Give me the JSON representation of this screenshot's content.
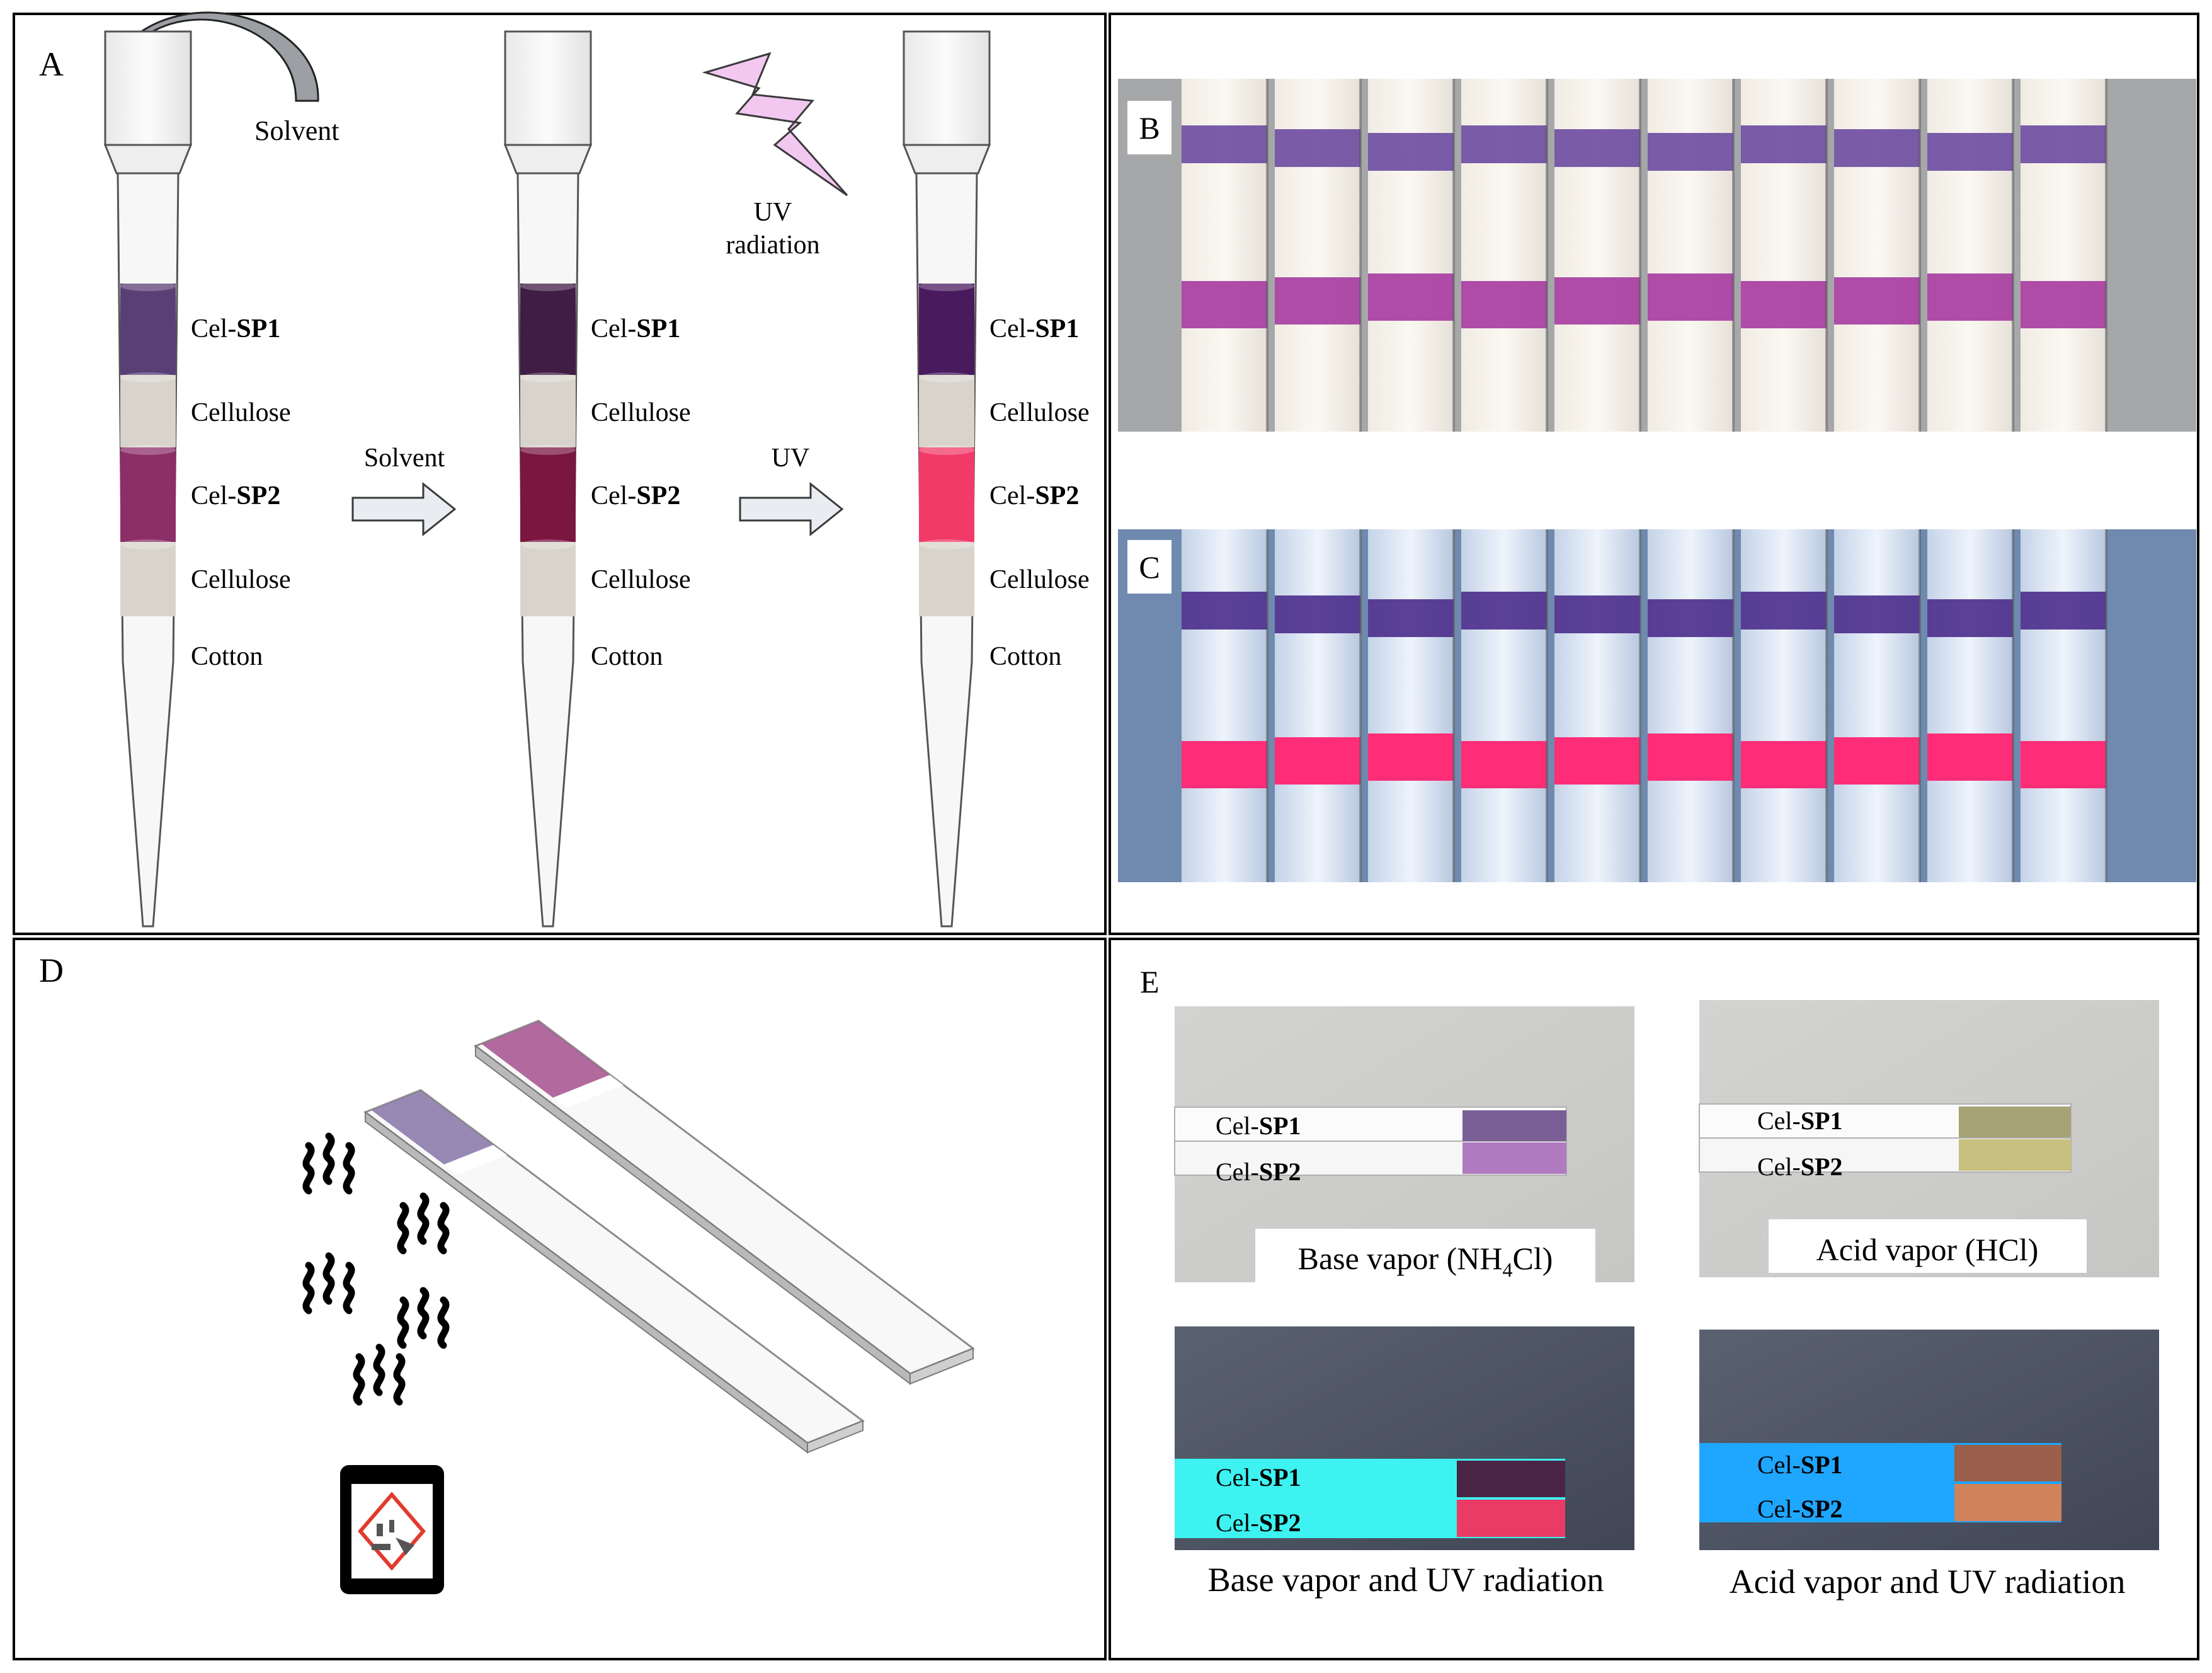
{
  "panel_labels": {
    "a": "A",
    "b": "B",
    "c": "C",
    "d": "D",
    "e": "E"
  },
  "panel_a": {
    "solvent_top": "Solvent",
    "uv_line1": "UV",
    "uv_line2": "radiation",
    "arrow1_label": "Solvent",
    "arrow2_label": "UV",
    "layer_prefix": "Cel-",
    "sp1": "SP1",
    "sp2": "SP2",
    "cellulose": "Cellulose",
    "cotton": "Cotton",
    "tips": [
      {
        "sp1_color": "#5a3f76",
        "sp2_color": "#8c2e68"
      },
      {
        "sp1_color": "#3f1d45",
        "sp2_color": "#7a1640"
      },
      {
        "sp1_color": "#4a1a5e",
        "sp2_color": "#f23a69"
      }
    ]
  },
  "panel_b": {
    "strip_count": 10,
    "background": "#a6a7a9",
    "band1_color": "#6b4aa0",
    "band2_color": "#a63aa1"
  },
  "panel_c": {
    "strip_count": 10,
    "background": "#6f8aae",
    "band1_color": "#4b2c8c",
    "band2_color": "#ff2d78"
  },
  "panel_e": {
    "cel_prefix": "Cel-",
    "sp1": "SP1",
    "sp2": "SP2",
    "base_caption_pre": "Base vapor (NH",
    "base_caption_sub": "4",
    "base_caption_post": "Cl)",
    "acid_caption": "Acid vapor (HCl)",
    "base_uv_caption": "Base vapor and UV radiation",
    "acid_uv_caption": "Acid vapor and UV radiation",
    "colors": {
      "base_sp1": "#7a5f96",
      "base_sp2": "#b07ac0",
      "acid_sp1": "#a7a377",
      "acid_sp2": "#c8c07f",
      "base_uv_sp1": "#4a2545",
      "base_uv_sp2": "#ea3a66",
      "acid_uv_sp1": "#9a5f4a",
      "acid_uv_sp2": "#d0825a",
      "uv_strip_cyan": "#3df2f0",
      "uv_strip_blue": "#1fa6ff"
    }
  }
}
